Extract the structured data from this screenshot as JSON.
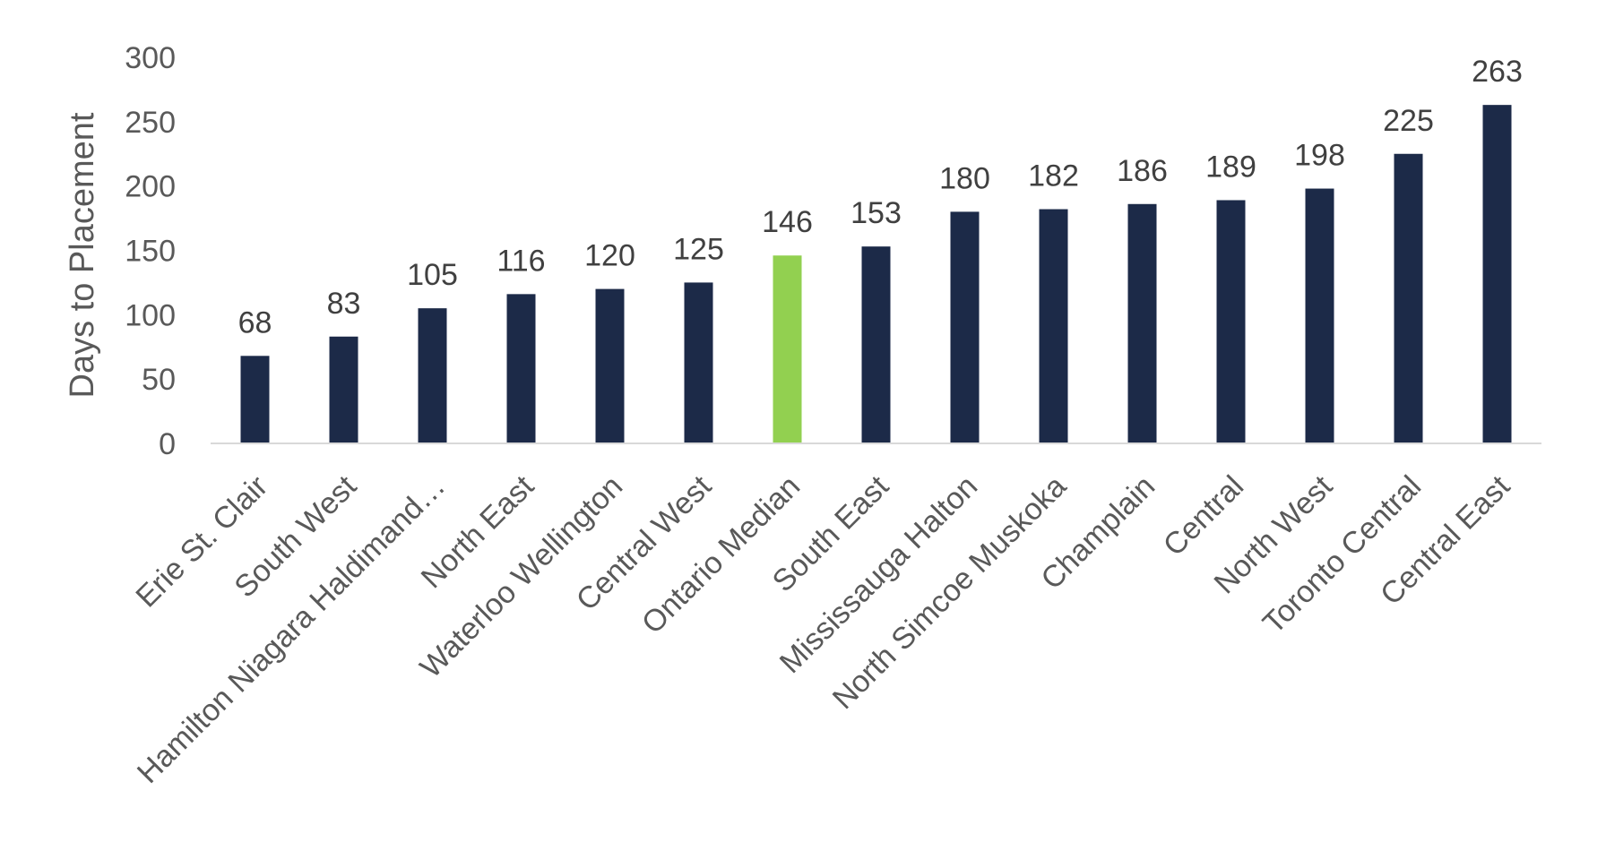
{
  "chart_data": {
    "type": "bar",
    "title": "",
    "xlabel": "",
    "ylabel": "Days to Placement",
    "ylim": [
      0,
      300
    ],
    "yticks": [
      0,
      50,
      100,
      150,
      200,
      250,
      300
    ],
    "grid": false,
    "legend": "none",
    "categories": [
      "Erie St. Clair",
      "South West",
      "Hamilton Niagara Haldimand…",
      "North East",
      "Waterloo Wellington",
      "Central West",
      "Ontario Median",
      "South East",
      "Mississauga Halton",
      "North Simcoe Muskoka",
      "Champlain",
      "Central",
      "North West",
      "Toronto Central",
      "Central East"
    ],
    "values": [
      68,
      83,
      105,
      116,
      120,
      125,
      146,
      153,
      180,
      182,
      186,
      189,
      198,
      225,
      263
    ],
    "highlight_index": 6,
    "colors": {
      "bar": "#1c2a48",
      "highlight": "#92d050",
      "axis": "#d9d9d9"
    }
  }
}
